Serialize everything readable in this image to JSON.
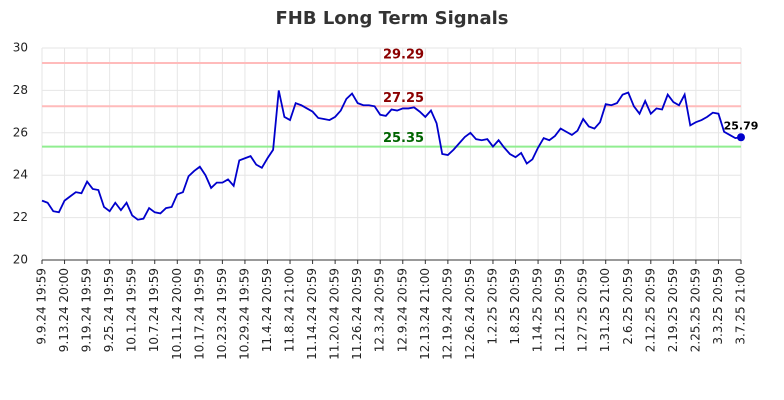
{
  "chart_data": {
    "type": "line",
    "title": "FHB Long Term Signals",
    "categories": [
      "9.9.24 19:59",
      null,
      null,
      null,
      "9.13.24 20:00",
      null,
      null,
      null,
      "9.19.24 19:59",
      null,
      null,
      null,
      "9.25.24 19:59",
      null,
      null,
      null,
      "10.1.24 19:59",
      null,
      null,
      null,
      "10.7.24 19:59",
      null,
      null,
      null,
      "10.11.24 20:00",
      null,
      null,
      null,
      "10.17.24 19:59",
      null,
      null,
      null,
      "10.23.24 19:59",
      null,
      null,
      null,
      "10.29.24 19:59",
      null,
      null,
      null,
      "11.4.24 20:59",
      null,
      null,
      null,
      "11.8.24 21:00",
      null,
      null,
      null,
      "11.14.24 20:59",
      null,
      null,
      null,
      "11.20.24 20:59",
      null,
      null,
      null,
      "11.26.24 20:59",
      null,
      null,
      null,
      "12.3.24 20:59",
      null,
      null,
      null,
      "12.9.24 20:59",
      null,
      null,
      null,
      "12.13.24 21:00",
      null,
      null,
      null,
      "12.19.24 20:59",
      null,
      null,
      null,
      "12.26.24 20:59",
      null,
      null,
      null,
      "1.2.25 20:59",
      null,
      null,
      null,
      "1.8.25 20:59",
      null,
      null,
      null,
      "1.14.25 20:59",
      null,
      null,
      null,
      "1.21.25 20:59",
      null,
      null,
      null,
      "1.27.25 20:59",
      null,
      null,
      null,
      "1.31.25 21:00",
      null,
      null,
      null,
      "2.6.25 20:59",
      null,
      null,
      null,
      "2.12.25 20:59",
      null,
      null,
      null,
      "2.19.25 20:59",
      null,
      null,
      null,
      "2.25.25 20:59",
      null,
      null,
      null,
      "3.3.25 20:59",
      null,
      null,
      null,
      "3.7.25 21:00"
    ],
    "series": [
      {
        "color": "#0000cc",
        "values": [
          22.8,
          22.7,
          22.3,
          22.25,
          22.8,
          23.0,
          23.2,
          23.15,
          23.7,
          23.35,
          23.3,
          22.5,
          22.3,
          22.7,
          22.35,
          22.7,
          22.1,
          21.9,
          21.95,
          22.45,
          22.25,
          22.2,
          22.45,
          22.5,
          23.1,
          23.2,
          23.95,
          24.2,
          24.4,
          24.0,
          23.4,
          23.65,
          23.65,
          23.8,
          23.5,
          24.7,
          24.8,
          24.9,
          24.5,
          24.35,
          24.8,
          25.2,
          28.0,
          26.75,
          26.6,
          27.4,
          27.3,
          27.15,
          27.0,
          26.7,
          26.65,
          26.6,
          26.75,
          27.05,
          27.6,
          27.85,
          27.4,
          27.3,
          27.3,
          27.25,
          26.85,
          26.8,
          27.1,
          27.05,
          27.15,
          27.15,
          27.2,
          27.0,
          26.75,
          27.05,
          26.45,
          25.0,
          24.95,
          25.2,
          25.5,
          25.8,
          26.0,
          25.7,
          25.65,
          25.7,
          25.35,
          25.65,
          25.3,
          25.0,
          24.85,
          25.05,
          24.55,
          24.75,
          25.3,
          25.75,
          25.65,
          25.85,
          26.2,
          26.05,
          25.9,
          26.1,
          26.65,
          26.3,
          26.2,
          26.5,
          27.35,
          27.3,
          27.4,
          27.8,
          27.9,
          27.25,
          26.9,
          27.5,
          26.9,
          27.15,
          27.1,
          27.8,
          27.45,
          27.3,
          27.8,
          26.35,
          26.5,
          26.6,
          26.75,
          26.95,
          26.9,
          26.05,
          25.9,
          25.75,
          25.79
        ]
      }
    ],
    "ylim": [
      20,
      30
    ],
    "yticks": [
      20,
      22,
      24,
      26,
      28,
      30
    ],
    "grid": true,
    "hlines": [
      {
        "value": 29.29,
        "color": "#ffbbbb",
        "label_color": "#8b0000"
      },
      {
        "value": 27.25,
        "color": "#ffbbbb",
        "label_color": "#8b0000"
      },
      {
        "value": 25.35,
        "color": "#90ee90",
        "label_color": "#006400"
      }
    ]
  }
}
